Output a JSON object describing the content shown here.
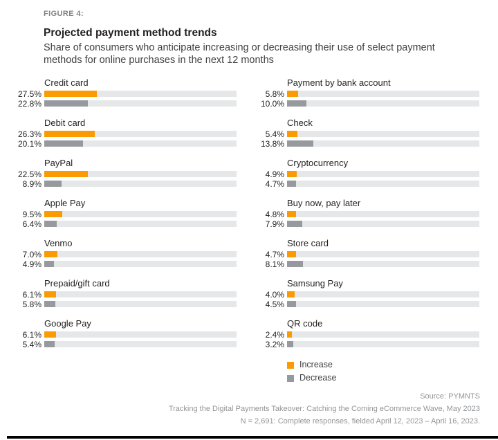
{
  "figure_label": "FIGURE 4:",
  "title": "Projected payment method trends",
  "subtitle_lines": [
    "Share of consumers who anticipate increasing or decreasing their use of select payment",
    "methods for online purchases in the next 12 months"
  ],
  "legend": {
    "increase_label": "Increase",
    "decrease_label": "Decrease"
  },
  "colors": {
    "increase": "#FB9B04",
    "decrease": "#96999E",
    "track": "#E6E7E8"
  },
  "footer": {
    "lines": [
      "Source: PYMNTS",
      "Tracking the Digital Payments Takeover: Catching the Coming eCommerce Wave, May 2023",
      "N = 2,691: Complete responses, fielded April 12, 2023 – April 16, 2023."
    ]
  },
  "chart_data": {
    "type": "bar",
    "orientation": "horizontal",
    "unit": "%",
    "axis_max": 100,
    "grid": false,
    "legend_position": "bottom-right",
    "series": [
      {
        "name": "Increase",
        "color": "#FB9B04"
      },
      {
        "name": "Decrease",
        "color": "#96999E"
      }
    ],
    "columns": [
      {
        "items": [
          {
            "label": "Credit card",
            "increase": 27.5,
            "decrease": 22.8
          },
          {
            "label": "Debit card",
            "increase": 26.3,
            "decrease": 20.1
          },
          {
            "label": "PayPal",
            "increase": 22.5,
            "decrease": 8.9
          },
          {
            "label": "Apple Pay",
            "increase": 9.5,
            "decrease": 6.4
          },
          {
            "label": "Venmo",
            "increase": 7.0,
            "decrease": 4.9
          },
          {
            "label": "Prepaid/gift card",
            "increase": 6.1,
            "decrease": 5.8
          },
          {
            "label": "Google Pay",
            "increase": 6.1,
            "decrease": 5.4
          }
        ]
      },
      {
        "items": [
          {
            "label": "Payment by bank account",
            "increase": 5.8,
            "decrease": 10.0
          },
          {
            "label": "Check",
            "increase": 5.4,
            "decrease": 13.8
          },
          {
            "label": "Cryptocurrency",
            "increase": 4.9,
            "decrease": 4.7
          },
          {
            "label": "Buy now, pay later",
            "increase": 4.8,
            "decrease": 7.9
          },
          {
            "label": "Store card",
            "increase": 4.7,
            "decrease": 8.1
          },
          {
            "label": "Samsung Pay",
            "increase": 4.0,
            "decrease": 4.5
          },
          {
            "label": "QR code",
            "increase": 2.4,
            "decrease": 3.2
          }
        ]
      }
    ]
  }
}
